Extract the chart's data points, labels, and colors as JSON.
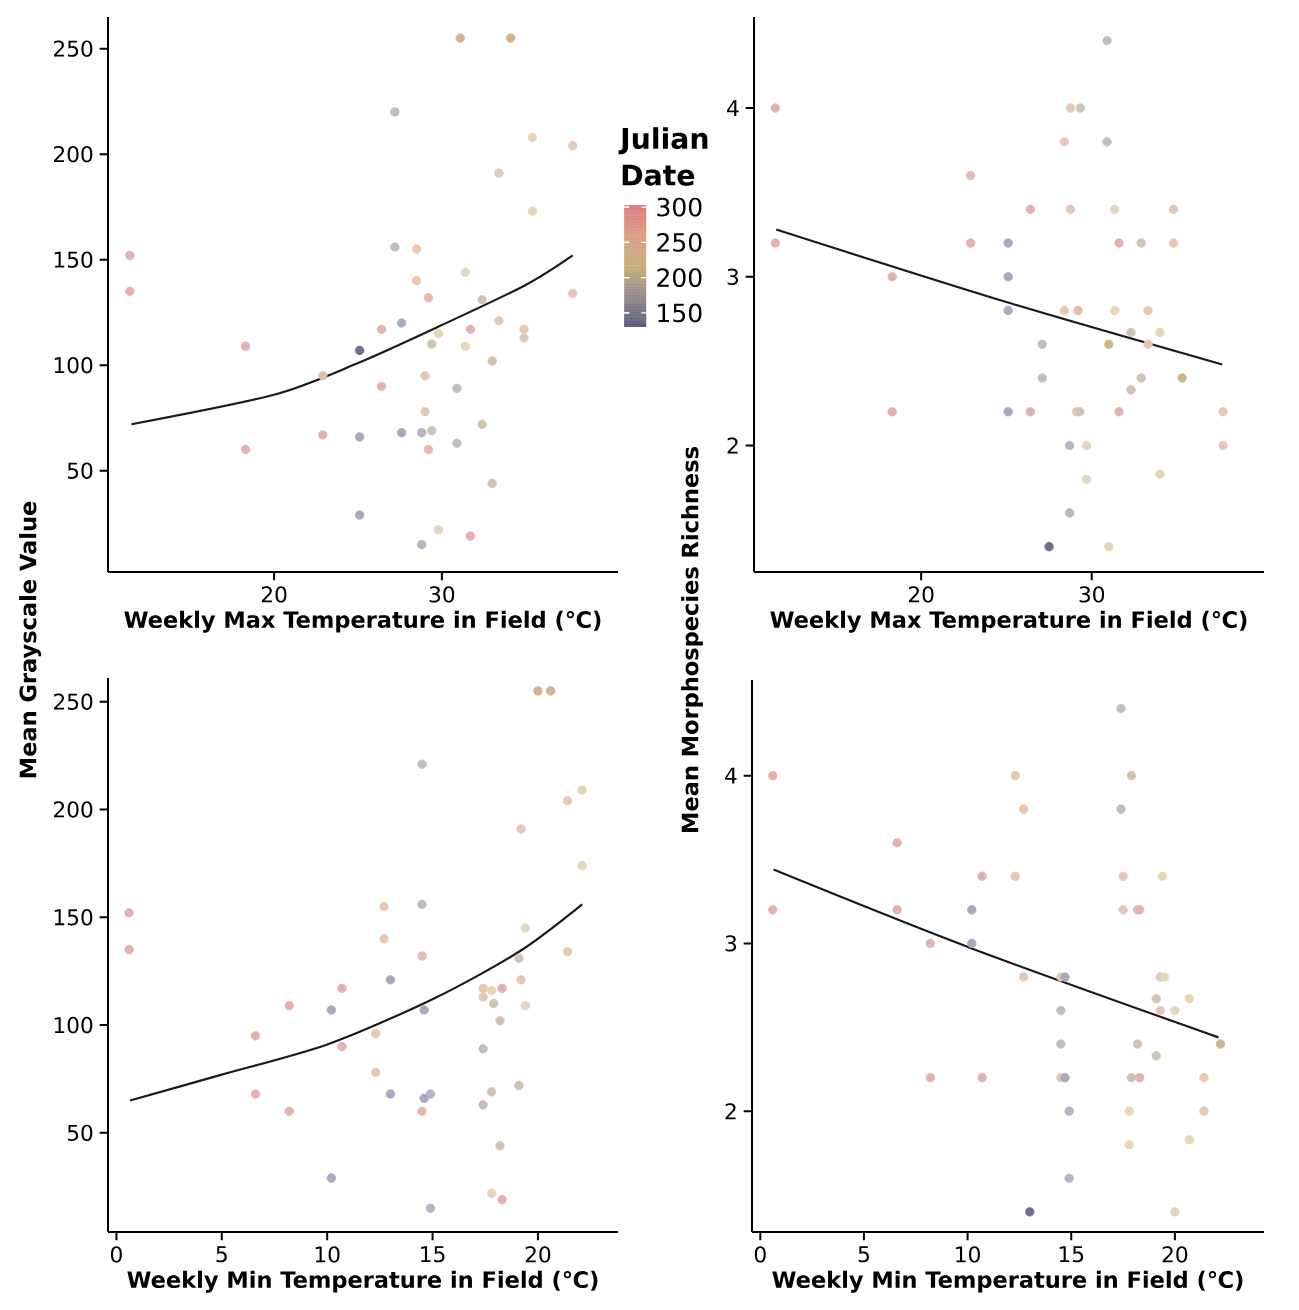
{
  "chart_data": [
    {
      "type": "scatter",
      "xlabel": "Weekly Max Temperature in Field (℃)",
      "ylabel": "Mean Grayscale Value",
      "xlim": [
        10.1,
        40.5
      ],
      "ylim": [
        2,
        265
      ],
      "xticks": [
        20,
        30
      ],
      "yticks": [
        50,
        100,
        150,
        200,
        250
      ],
      "clabel": "Julian Date",
      "clim": [
        130,
        303
      ],
      "cticks": [
        150,
        200,
        250,
        300
      ],
      "series": [
        {
          "marker": "circle",
          "x": [
            31.1,
            34.1,
            27.2,
            35.4,
            37.8,
            33.4,
            35.4,
            11.4,
            27.2,
            28.5,
            11.4,
            28.5,
            31.4,
            29.2,
            32.4,
            37.8,
            27.6,
            26.4,
            31.7,
            33.4,
            34.9,
            34.9,
            29.8,
            29.4,
            31.4,
            25.1,
            18.3,
            33.0,
            22.9,
            29.0,
            26.4,
            30.9,
            29.0,
            32.4,
            29.4,
            22.9,
            25.1,
            27.6,
            28.8,
            18.3,
            29.2,
            30.9,
            33.0,
            25.1,
            29.8,
            31.7,
            28.8
          ],
          "values": [
            255,
            255,
            220,
            208,
            204,
            191,
            173,
            152,
            156,
            155,
            135,
            140,
            144,
            132,
            131,
            134,
            120,
            117,
            117,
            121,
            117,
            113,
            115,
            110,
            109,
            107,
            109,
            102,
            95,
            95,
            90,
            89,
            78,
            72,
            69,
            67,
            66,
            68,
            68,
            60,
            60,
            63,
            44,
            29,
            22,
            19,
            15
          ],
          "colors": [
            "#cdb48c",
            "#cdb48c",
            "#c4bcbe",
            "#e4d6b8",
            "#e8c6b4",
            "#e8c6b4",
            "#e4d6b8",
            "#e6b0b0",
            "#c4bcbe",
            "#e8c6b4",
            "#e6b0b0",
            "#e8c6b4",
            "#e4d6b8",
            "#e8b8ae",
            "#cfc4b4",
            "#e8c6b4",
            "#a9a8c0",
            "#e6b0b0",
            "#e6b0b0",
            "#e8c6b4",
            "#e8c6b4",
            "#e8c6b4",
            "#e4d6b8",
            "#cfc4b4",
            "#e4d6b8",
            "#6e6e90",
            "#e6b0b0",
            "#cfc4b4",
            "#e8b8ae",
            "#e8c6b4",
            "#e6b0b0",
            "#c4bcbe",
            "#e8c6b4",
            "#cfc4b4",
            "#cfc4b4",
            "#e6b0b0",
            "#a9a8c0",
            "#a9a8c0",
            "#b8b4c4",
            "#e6b0b0",
            "#e8b8ae",
            "#c4bcbe",
            "#cfc4b4",
            "#a9a8c0",
            "#e4d6b8",
            "#e6b0b0",
            "#b8b4c4"
          ]
        },
        {
          "type": "line",
          "color": "#1a1a1a",
          "x": [
            11.5,
            20,
            25,
            30,
            35,
            37.8
          ],
          "values": [
            72,
            86,
            101,
            119,
            138,
            152
          ]
        }
      ]
    },
    {
      "type": "scatter",
      "xlabel": "Weekly Max Temperature in Field (℃)",
      "ylabel": "Mean Morphospecies Richness",
      "xlim": [
        10.2,
        40.1
      ],
      "ylim": [
        1.25,
        4.54
      ],
      "xticks": [
        20,
        30
      ],
      "yticks": [
        2,
        3,
        4
      ],
      "series": [
        {
          "marker": "circle",
          "x": [
            30.9,
            11.45,
            28.75,
            29.33,
            28.4,
            30.9,
            22.9,
            26.4,
            28.75,
            31.35,
            34.8,
            11.45,
            22.9,
            25.1,
            31.6,
            32.9,
            34.8,
            18.3,
            25.1,
            25.1,
            28.4,
            29.2,
            31.35,
            33.3,
            32.3,
            34.0,
            27.1,
            31.0,
            33.3,
            27.1,
            32.9,
            35.3,
            32.3,
            18.3,
            25.1,
            26.4,
            29.1,
            29.3,
            31.6,
            37.7,
            28.7,
            29.7,
            37.7,
            34.0,
            29.7,
            28.7,
            27.5,
            31.0
          ],
          "values": [
            4.4,
            4.0,
            4.0,
            4.0,
            3.8,
            3.8,
            3.6,
            3.4,
            3.4,
            3.4,
            3.4,
            3.2,
            3.2,
            3.2,
            3.2,
            3.2,
            3.2,
            3.0,
            3.0,
            2.8,
            2.8,
            2.8,
            2.8,
            2.8,
            2.67,
            2.67,
            2.6,
            2.6,
            2.6,
            2.4,
            2.4,
            2.4,
            2.33,
            2.2,
            2.2,
            2.2,
            2.2,
            2.2,
            2.2,
            2.2,
            2.0,
            2.0,
            2.0,
            1.83,
            1.8,
            1.6,
            1.4,
            1.4
          ],
          "colors": [
            "#c4bcbe",
            "#e6b0b0",
            "#e8c6b4",
            "#cfc4b4",
            "#e8c6b4",
            "#c4bcbe",
            "#e8b8ae",
            "#e6b0b0",
            "#e8c6b4",
            "#e4d6b8",
            "#e8c6b4",
            "#e6b0b0",
            "#e6b0b0",
            "#a9a8c0",
            "#e6b0b0",
            "#cfc4b4",
            "#e8c6b4",
            "#e6b0b0",
            "#a9a8c0",
            "#a9a8c0",
            "#e8c6b4",
            "#e8b8ae",
            "#e4d6b8",
            "#e8c6b4",
            "#cfc4b4",
            "#e4d6b8",
            "#c4bcbe",
            "#cdb48c",
            "#e8c6b4",
            "#c4bcbe",
            "#cfc4b4",
            "#cdb48c",
            "#cfc4b4",
            "#e6b0b0",
            "#a9a8c0",
            "#e6b0b0",
            "#e8c6b4",
            "#cfc4b4",
            "#e6b0b0",
            "#e8c6b4",
            "#b8b4c4",
            "#e4d6b8",
            "#e8c6b4",
            "#e4d6b8",
            "#e4d6b8",
            "#b8b4c4",
            "#6e6e90",
            "#e4d6b8"
          ]
        },
        {
          "type": "line",
          "color": "#1a1a1a",
          "x": [
            11.5,
            25,
            37.65
          ],
          "values": [
            3.28,
            2.85,
            2.48
          ]
        }
      ]
    },
    {
      "type": "scatter",
      "xlabel": "Weekly Min Temperature in Field (℃)",
      "xlim": [
        -0.4,
        23.8
      ],
      "ylim": [
        4,
        261
      ],
      "xticks": [
        0,
        5,
        10,
        15,
        20
      ],
      "yticks": [
        50,
        100,
        150,
        200,
        250
      ],
      "series": [
        {
          "marker": "circle",
          "x": [
            20.0,
            20.6,
            14.5,
            22.1,
            21.4,
            19.2,
            22.1,
            0.6,
            12.7,
            14.5,
            0.6,
            12.7,
            14.5,
            19.4,
            19.1,
            21.4,
            13.0,
            10.7,
            19.2,
            17.4,
            17.8,
            18.3,
            17.4,
            17.9,
            19.4,
            8.2,
            10.2,
            14.6,
            18.2,
            6.6,
            12.3,
            10.7,
            17.4,
            12.3,
            19.1,
            17.8,
            6.6,
            13.0,
            14.9,
            14.6,
            8.2,
            14.5,
            17.4,
            18.2,
            10.2,
            17.8,
            18.3,
            14.9
          ],
          "values": [
            255,
            255,
            221,
            209,
            204,
            191,
            174,
            152,
            155,
            156,
            135,
            140,
            132,
            145,
            131,
            134,
            121,
            117,
            121,
            117,
            116,
            117,
            113,
            110,
            109,
            109,
            107,
            107,
            102,
            95,
            96,
            90,
            89,
            78,
            72,
            69,
            68,
            68,
            68,
            66,
            60,
            60,
            63,
            44,
            29,
            22,
            19,
            15
          ],
          "colors": [
            "#cdb48c",
            "#cdb48c",
            "#c4bcbe",
            "#e4d6b8",
            "#e8c6b4",
            "#e8c6b4",
            "#e4d6b8",
            "#e6b0b0",
            "#e8c6b4",
            "#c4bcbe",
            "#e6b0b0",
            "#e8c6b4",
            "#e8b8ae",
            "#e4d6b8",
            "#cfc4b4",
            "#e8c6b4",
            "#a9a8c0",
            "#e6b0b0",
            "#e8c6b4",
            "#e8c6b4",
            "#e4d6b8",
            "#e6b0b0",
            "#e8c6b4",
            "#cfc4b4",
            "#e4d6b8",
            "#e6b0b0",
            "#a9a8c0",
            "#a9a8c0",
            "#cfc4b4",
            "#e6b0b0",
            "#e8c6b4",
            "#e6b0b0",
            "#c4bcbe",
            "#e8c6b4",
            "#cfc4b4",
            "#cfc4b4",
            "#e6b0b0",
            "#a9a8c0",
            "#b8b4c4",
            "#a9a8c0",
            "#e6b0b0",
            "#e8b8ae",
            "#c4bcbe",
            "#cfc4b4",
            "#a9a8c0",
            "#e4d6b8",
            "#e6b0b0",
            "#b8b4c4"
          ]
        },
        {
          "type": "line",
          "color": "#1a1a1a",
          "x": [
            0.65,
            5,
            10,
            15,
            19.1,
            22.1
          ],
          "values": [
            65,
            77,
            91,
            112,
            134,
            156
          ]
        }
      ]
    },
    {
      "type": "scatter",
      "xlabel": "Weekly Min Temperature in Field (℃)",
      "xlim": [
        -0.4,
        24.3
      ],
      "ylim": [
        1.28,
        4.57
      ],
      "xticks": [
        0,
        5,
        10,
        15,
        20
      ],
      "yticks": [
        2,
        3,
        4
      ],
      "series": [
        {
          "marker": "circle",
          "x": [
            17.4,
            0.6,
            12.3,
            17.9,
            12.7,
            17.4,
            6.6,
            10.7,
            12.3,
            17.5,
            19.4,
            0.6,
            6.6,
            10.2,
            17.5,
            18.2,
            18.3,
            8.2,
            10.2,
            12.7,
            14.5,
            14.7,
            19.3,
            19.5,
            19.1,
            20.7,
            14.5,
            19.3,
            20.0,
            14.5,
            18.2,
            22.2,
            19.1,
            8.2,
            10.7,
            14.5,
            14.7,
            17.9,
            18.3,
            21.4,
            14.9,
            17.8,
            21.4,
            20.7,
            17.8,
            14.9,
            13.0,
            20.0
          ],
          "values": [
            4.4,
            4.0,
            4.0,
            4.0,
            3.8,
            3.8,
            3.6,
            3.4,
            3.4,
            3.4,
            3.4,
            3.2,
            3.2,
            3.2,
            3.2,
            3.2,
            3.2,
            3.0,
            3.0,
            2.8,
            2.8,
            2.8,
            2.8,
            2.8,
            2.67,
            2.67,
            2.6,
            2.6,
            2.6,
            2.4,
            2.4,
            2.4,
            2.33,
            2.2,
            2.2,
            2.2,
            2.2,
            2.2,
            2.2,
            2.2,
            2.0,
            2.0,
            2.0,
            1.83,
            1.8,
            1.6,
            1.4,
            1.4
          ],
          "colors": [
            "#c4bcbe",
            "#e6b0b0",
            "#e8c6b4",
            "#cfc4b4",
            "#e8c6b4",
            "#c4bcbe",
            "#e6b0b0",
            "#e6b0b0",
            "#e8c6b4",
            "#e8c6b4",
            "#e4d6b8",
            "#e6b0b0",
            "#e6b0b0",
            "#a9a8c0",
            "#e8c6b4",
            "#cfc4b4",
            "#e6b0b0",
            "#e6b0b0",
            "#a9a8c0",
            "#e8c6b4",
            "#e8c6b4",
            "#a9a8c0",
            "#e8c6b4",
            "#e4d6b8",
            "#cfc4b4",
            "#e4d6b8",
            "#c4bcbe",
            "#e8c6b4",
            "#e4d6b8",
            "#c4bcbe",
            "#cfc4b4",
            "#cdb48c",
            "#cfc4b4",
            "#e6b0b0",
            "#e6b0b0",
            "#e8c6b4",
            "#a9a8c0",
            "#cfc4b4",
            "#e6b0b0",
            "#e8c6b4",
            "#b8b4c4",
            "#e4d6b8",
            "#e8c6b4",
            "#e4d6b8",
            "#e4d6b8",
            "#b8b4c4",
            "#6e6e90",
            "#e4d6b8"
          ]
        },
        {
          "type": "line",
          "color": "#1a1a1a",
          "x": [
            0.64,
            10.2,
            22.1
          ],
          "values": [
            3.44,
            2.97,
            2.44
          ]
        }
      ]
    }
  ]
}
